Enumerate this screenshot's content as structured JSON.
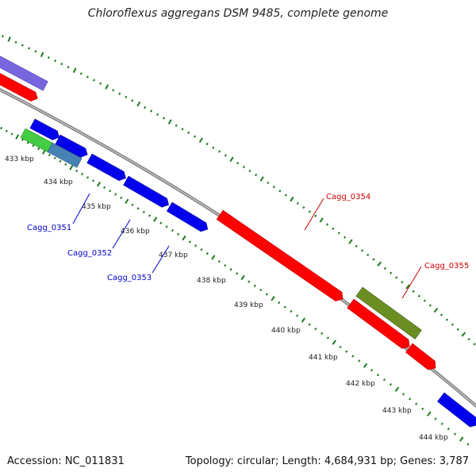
{
  "title": "Chloroflexus aggregans DSM 9485, complete genome",
  "footer": {
    "accession": "Accession: NC_011831",
    "summary": "Topology: circular; Length: 4,684,931 bp; Genes: 3,787"
  },
  "ticks": [
    {
      "label": "433 kbp"
    },
    {
      "label": "434 kbp"
    },
    {
      "label": "435 kbp"
    },
    {
      "label": "436 kbp"
    },
    {
      "label": "437 kbp"
    },
    {
      "label": "438 kbp"
    },
    {
      "label": "439 kbp"
    },
    {
      "label": "440 kbp"
    },
    {
      "label": "441 kbp"
    },
    {
      "label": "442 kbp"
    },
    {
      "label": "443 kbp"
    },
    {
      "label": "444 kbp"
    }
  ],
  "gene_labels": [
    {
      "name": "Cagg_0351",
      "color": "#0000cc"
    },
    {
      "name": "Cagg_0352",
      "color": "#0000cc"
    },
    {
      "name": "Cagg_0353",
      "color": "#0000cc"
    },
    {
      "name": "Cagg_0354",
      "color": "#cc0000"
    },
    {
      "name": "Cagg_0355",
      "color": "#cc0000"
    }
  ],
  "colors": {
    "backbone": "#808080",
    "tick_green": "#1a7a1a",
    "feature_red": "#ff0000",
    "feature_blue": "#0000ee",
    "feature_purple": "#7766dd",
    "feature_olive": "#6b8e23",
    "feature_green": "#44cc44",
    "feature_steelblue": "#4682b4"
  }
}
